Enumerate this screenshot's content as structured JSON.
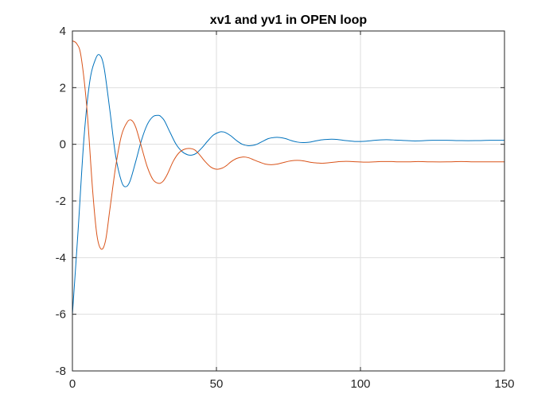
{
  "chart_data": {
    "type": "line",
    "title": "xv1 and yv1 in OPEN loop",
    "xlabel": "",
    "ylabel": "",
    "xlim": [
      0,
      150
    ],
    "ylim": [
      -8,
      4
    ],
    "xticks": [
      "0",
      "50",
      "100",
      "150"
    ],
    "yticks": [
      "-8",
      "-6",
      "-4",
      "-2",
      "0",
      "2",
      "4"
    ],
    "grid": true,
    "series": [
      {
        "color": "#0072BD",
        "x": [
          0,
          2,
          4,
          6,
          8,
          9.5,
          11,
          13,
          15,
          17,
          18.5,
          20,
          22,
          24,
          26,
          28,
          30,
          31,
          32,
          34,
          36,
          38,
          40,
          41.5,
          43,
          45,
          47,
          49,
          51,
          52,
          53,
          55,
          57,
          59,
          61,
          62.5,
          64,
          66,
          68,
          70,
          72,
          74,
          76,
          78,
          80,
          82,
          84,
          86,
          88,
          90,
          92,
          94,
          96,
          98,
          100,
          102,
          104,
          106,
          108,
          110,
          112,
          114,
          116,
          118,
          120,
          125,
          130,
          135,
          140,
          145,
          150
        ],
        "values": [
          -6.0,
          -3.0,
          0.2,
          2.2,
          3.0,
          3.15,
          2.7,
          1.2,
          -0.4,
          -1.3,
          -1.5,
          -1.3,
          -0.6,
          0.15,
          0.7,
          0.98,
          1.02,
          0.95,
          0.82,
          0.4,
          0.0,
          -0.25,
          -0.37,
          -0.38,
          -0.32,
          -0.12,
          0.12,
          0.33,
          0.43,
          0.44,
          0.42,
          0.3,
          0.13,
          0.0,
          -0.05,
          -0.04,
          0.0,
          0.1,
          0.2,
          0.24,
          0.24,
          0.2,
          0.13,
          0.08,
          0.06,
          0.07,
          0.11,
          0.15,
          0.17,
          0.18,
          0.17,
          0.14,
          0.12,
          0.1,
          0.1,
          0.11,
          0.13,
          0.15,
          0.16,
          0.16,
          0.15,
          0.14,
          0.13,
          0.12,
          0.12,
          0.14,
          0.14,
          0.13,
          0.13,
          0.14,
          0.14
        ]
      },
      {
        "color": "#D95319",
        "x": [
          0,
          1.5,
          3,
          5,
          7,
          8.5,
          10,
          11.5,
          13,
          15,
          17,
          19,
          20.5,
          22,
          24,
          26,
          28,
          30,
          31.5,
          33,
          35,
          37,
          39,
          41,
          42.5,
          44,
          46,
          48,
          50,
          52,
          53.5,
          55,
          57,
          59,
          61,
          63,
          65,
          67,
          69,
          71,
          73,
          75,
          77,
          79,
          81,
          83,
          85,
          87,
          89,
          91,
          93,
          95,
          97,
          99,
          101,
          103,
          105,
          107,
          109,
          111,
          113,
          115,
          117,
          120,
          125,
          130,
          135,
          140,
          145,
          150
        ],
        "values": [
          3.65,
          3.55,
          3.1,
          1.3,
          -1.6,
          -3.2,
          -3.7,
          -3.4,
          -2.3,
          -0.8,
          0.3,
          0.78,
          0.85,
          0.6,
          -0.1,
          -0.8,
          -1.25,
          -1.38,
          -1.3,
          -1.05,
          -0.6,
          -0.3,
          -0.17,
          -0.15,
          -0.2,
          -0.35,
          -0.6,
          -0.8,
          -0.88,
          -0.84,
          -0.75,
          -0.62,
          -0.5,
          -0.45,
          -0.47,
          -0.55,
          -0.63,
          -0.7,
          -0.72,
          -0.7,
          -0.65,
          -0.6,
          -0.57,
          -0.57,
          -0.6,
          -0.64,
          -0.66,
          -0.67,
          -0.65,
          -0.63,
          -0.61,
          -0.6,
          -0.61,
          -0.62,
          -0.63,
          -0.63,
          -0.62,
          -0.61,
          -0.61,
          -0.61,
          -0.62,
          -0.62,
          -0.62,
          -0.61,
          -0.62,
          -0.62,
          -0.61,
          -0.62,
          -0.62,
          -0.62
        ]
      }
    ]
  }
}
